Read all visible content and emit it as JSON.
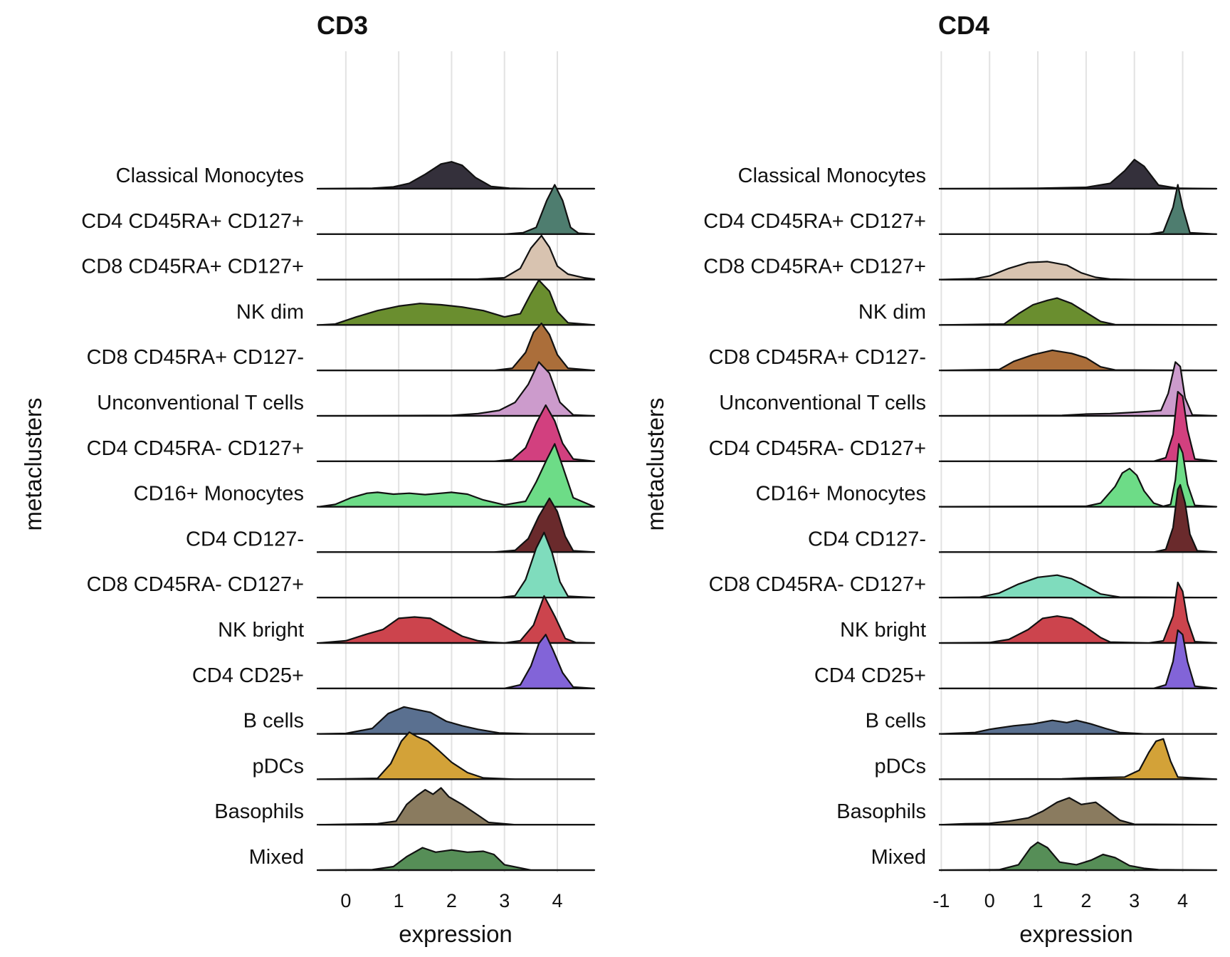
{
  "chart_data": [
    {
      "type": "ridgeline",
      "title": "CD3",
      "xlabel": "expression",
      "ylabel": "metaclusters",
      "xlim": [
        -0.55,
        4.7
      ],
      "xticks": [
        0,
        1,
        2,
        3,
        4
      ],
      "xtick_labels": [
        "0",
        "1",
        "2",
        "3",
        "4"
      ],
      "grid": "vertical major",
      "legend": "none",
      "categories": [
        "Classical Monocytes",
        "CD4 CD45RA+ CD127+",
        "CD8 CD45RA+ CD127+",
        "NK dim",
        "CD8 CD45RA+ CD127-",
        "Unconventional T cells",
        "CD4 CD45RA- CD127+",
        "CD16+ Monocytes",
        "CD4 CD127-",
        "CD8 CD45RA- CD127+",
        "NK bright",
        "CD4 CD25+",
        "B cells",
        "pDCs",
        "Basophils",
        "Mixed"
      ],
      "series": [
        {
          "color": "#34303b",
          "x": [
            -0.5,
            0.5,
            0.9,
            1.2,
            1.5,
            1.8,
            2.0,
            2.2,
            2.45,
            2.75,
            3.1,
            3.5,
            4.7
          ],
          "density": [
            0.0,
            0.01,
            0.04,
            0.12,
            0.32,
            0.55,
            0.6,
            0.52,
            0.25,
            0.05,
            0.01,
            0.0,
            0.0
          ]
        },
        {
          "color": "#4e7d6f",
          "x": [
            -0.5,
            3.0,
            3.35,
            3.6,
            3.8,
            3.95,
            4.1,
            4.25,
            4.4,
            4.7
          ],
          "density": [
            0.0,
            0.0,
            0.03,
            0.15,
            0.75,
            1.1,
            0.75,
            0.15,
            0.02,
            0.0
          ]
        },
        {
          "color": "#d8c3b0",
          "x": [
            -0.5,
            2.5,
            3.0,
            3.3,
            3.5,
            3.7,
            3.85,
            4.0,
            4.2,
            4.5,
            4.7
          ],
          "density": [
            0.0,
            0.01,
            0.04,
            0.25,
            0.7,
            0.98,
            0.72,
            0.3,
            0.12,
            0.04,
            0.01
          ]
        },
        {
          "color": "#6a8e2f",
          "x": [
            -0.5,
            -0.2,
            0.2,
            0.6,
            1.0,
            1.4,
            1.8,
            2.2,
            2.6,
            3.0,
            3.3,
            3.5,
            3.65,
            3.85,
            4.0,
            4.2,
            4.7
          ],
          "density": [
            0.0,
            0.02,
            0.18,
            0.32,
            0.42,
            0.48,
            0.45,
            0.4,
            0.32,
            0.18,
            0.25,
            0.7,
            1.0,
            0.75,
            0.3,
            0.05,
            0.0
          ]
        },
        {
          "color": "#ab6e3a",
          "x": [
            -0.5,
            2.8,
            3.15,
            3.4,
            3.55,
            3.7,
            3.85,
            4.0,
            4.2,
            4.7
          ],
          "density": [
            0.0,
            0.0,
            0.05,
            0.4,
            0.85,
            1.05,
            0.8,
            0.35,
            0.05,
            0.0
          ]
        },
        {
          "color": "#cc9bcc",
          "x": [
            -0.5,
            2.0,
            2.5,
            2.9,
            3.2,
            3.45,
            3.65,
            3.85,
            4.05,
            4.3,
            4.7
          ],
          "density": [
            0.0,
            0.01,
            0.05,
            0.12,
            0.3,
            0.7,
            1.2,
            0.95,
            0.3,
            0.02,
            0.0
          ]
        },
        {
          "color": "#d2407f",
          "x": [
            -0.5,
            2.8,
            3.15,
            3.4,
            3.6,
            3.78,
            3.95,
            4.1,
            4.3,
            4.7
          ],
          "density": [
            0.0,
            0.0,
            0.04,
            0.3,
            0.85,
            1.25,
            0.9,
            0.4,
            0.05,
            0.0
          ]
        },
        {
          "color": "#6ddc87",
          "x": [
            -0.5,
            -0.2,
            0.1,
            0.4,
            0.6,
            0.9,
            1.2,
            1.5,
            1.8,
            2.0,
            2.3,
            2.6,
            3.0,
            3.4,
            3.6,
            3.8,
            3.95,
            4.1,
            4.3,
            4.7
          ],
          "density": [
            0.0,
            0.05,
            0.2,
            0.3,
            0.32,
            0.28,
            0.3,
            0.27,
            0.3,
            0.32,
            0.28,
            0.15,
            0.04,
            0.12,
            0.55,
            1.05,
            1.4,
            0.9,
            0.2,
            0.0
          ]
        },
        {
          "color": "#6a2a2c",
          "x": [
            -0.5,
            2.8,
            3.2,
            3.45,
            3.65,
            3.85,
            4.0,
            4.15,
            4.3,
            4.7
          ],
          "density": [
            0.0,
            0.0,
            0.04,
            0.3,
            0.8,
            1.2,
            0.9,
            0.35,
            0.03,
            0.0
          ]
        },
        {
          "color": "#7fdcbd",
          "x": [
            -0.5,
            2.9,
            3.2,
            3.4,
            3.6,
            3.75,
            3.9,
            4.05,
            4.2,
            4.7
          ],
          "density": [
            0.0,
            0.0,
            0.04,
            0.4,
            1.1,
            1.45,
            1.0,
            0.35,
            0.03,
            0.0
          ]
        },
        {
          "color": "#cc444d",
          "x": [
            -0.5,
            0.0,
            0.4,
            0.7,
            1.0,
            1.3,
            1.6,
            1.9,
            2.2,
            2.5,
            2.7,
            3.0,
            3.3,
            3.55,
            3.75,
            3.95,
            4.15,
            4.35,
            4.7
          ],
          "density": [
            0.0,
            0.05,
            0.2,
            0.3,
            0.55,
            0.58,
            0.55,
            0.35,
            0.15,
            0.05,
            0.02,
            0.0,
            0.05,
            0.4,
            1.05,
            0.6,
            0.1,
            0.01,
            0.0
          ]
        },
        {
          "color": "#8264d8",
          "x": [
            -0.5,
            3.0,
            3.3,
            3.5,
            3.65,
            3.78,
            3.92,
            4.1,
            4.3,
            4.7
          ],
          "density": [
            0.0,
            0.0,
            0.08,
            0.5,
            1.0,
            1.2,
            0.85,
            0.35,
            0.03,
            0.0
          ]
        },
        {
          "color": "#5a7090",
          "x": [
            -0.5,
            0.0,
            0.5,
            0.8,
            1.1,
            1.3,
            1.6,
            1.9,
            2.2,
            2.5,
            2.9,
            3.5,
            4.7
          ],
          "density": [
            0.0,
            0.01,
            0.12,
            0.45,
            0.6,
            0.55,
            0.48,
            0.28,
            0.18,
            0.1,
            0.02,
            0.0,
            0.0
          ]
        },
        {
          "color": "#d3a238",
          "x": [
            -0.5,
            0.6,
            0.85,
            1.05,
            1.2,
            1.35,
            1.55,
            1.75,
            2.0,
            2.3,
            2.6,
            3.2,
            4.7
          ],
          "density": [
            0.0,
            0.02,
            0.35,
            0.85,
            1.05,
            0.95,
            0.85,
            0.65,
            0.38,
            0.15,
            0.03,
            0.0,
            0.0
          ]
        },
        {
          "color": "#8a7b5f",
          "x": [
            -0.5,
            0.6,
            0.95,
            1.15,
            1.35,
            1.5,
            1.65,
            1.8,
            1.95,
            2.2,
            2.45,
            2.7,
            3.2,
            4.7
          ],
          "density": [
            0.0,
            0.02,
            0.08,
            0.45,
            0.65,
            0.78,
            0.68,
            0.82,
            0.62,
            0.45,
            0.25,
            0.05,
            0.0,
            0.0
          ]
        },
        {
          "color": "#568e57",
          "x": [
            -0.5,
            0.5,
            0.9,
            1.15,
            1.45,
            1.7,
            2.0,
            2.3,
            2.6,
            2.8,
            3.0,
            3.5,
            4.7
          ],
          "density": [
            0.0,
            0.01,
            0.08,
            0.3,
            0.5,
            0.4,
            0.45,
            0.4,
            0.42,
            0.35,
            0.12,
            0.0,
            0.0
          ]
        }
      ]
    },
    {
      "type": "ridgeline",
      "title": "CD4",
      "xlabel": "expression",
      "ylabel": "metaclusters",
      "xlim": [
        -1.05,
        4.7
      ],
      "xticks": [
        -1,
        0,
        1,
        2,
        3,
        4
      ],
      "xtick_labels": [
        "-1",
        "0",
        "1",
        "2",
        "3",
        "4"
      ],
      "grid": "vertical major",
      "legend": "none",
      "categories": [
        "Classical Monocytes",
        "CD4 CD45RA+ CD127+",
        "CD8 CD45RA+ CD127+",
        "NK dim",
        "CD8 CD45RA+ CD127-",
        "Unconventional T cells",
        "CD4 CD45RA- CD127+",
        "CD16+ Monocytes",
        "CD4 CD127-",
        "CD8 CD45RA- CD127+",
        "NK bright",
        "CD4 CD25+",
        "B cells",
        "pDCs",
        "Basophils",
        "Mixed"
      ],
      "series": [
        {
          "color": "#34303b",
          "x": [
            -1.0,
            1.0,
            2.0,
            2.5,
            2.8,
            3.0,
            3.2,
            3.5,
            3.9,
            4.7
          ],
          "density": [
            0.0,
            0.01,
            0.03,
            0.12,
            0.4,
            0.65,
            0.5,
            0.08,
            0.01,
            0.0
          ]
        },
        {
          "color": "#4e7d6f",
          "x": [
            -1.0,
            3.3,
            3.6,
            3.8,
            3.9,
            4.0,
            4.15,
            4.7
          ],
          "density": [
            0.0,
            0.0,
            0.05,
            0.6,
            1.1,
            0.6,
            0.03,
            0.0
          ]
        },
        {
          "color": "#d8c3b0",
          "x": [
            -1.0,
            -0.3,
            0.0,
            0.4,
            0.8,
            1.2,
            1.6,
            1.9,
            2.2,
            2.5,
            3.0,
            4.7
          ],
          "density": [
            0.0,
            0.02,
            0.08,
            0.25,
            0.38,
            0.4,
            0.32,
            0.15,
            0.05,
            0.01,
            0.0,
            0.0
          ]
        },
        {
          "color": "#6a8e2f",
          "x": [
            -1.0,
            0.3,
            0.6,
            0.9,
            1.2,
            1.4,
            1.7,
            2.0,
            2.3,
            2.6,
            4.7
          ],
          "density": [
            0.0,
            0.02,
            0.25,
            0.45,
            0.55,
            0.6,
            0.48,
            0.28,
            0.08,
            0.01,
            0.0
          ]
        },
        {
          "color": "#ab6e3a",
          "x": [
            -1.0,
            0.2,
            0.5,
            0.9,
            1.3,
            1.7,
            2.0,
            2.3,
            2.6,
            4.7
          ],
          "density": [
            0.0,
            0.02,
            0.2,
            0.35,
            0.45,
            0.38,
            0.28,
            0.08,
            0.01,
            0.0
          ]
        },
        {
          "color": "#cc9bcc",
          "x": [
            -1.0,
            1.5,
            2.0,
            2.5,
            3.0,
            3.3,
            3.55,
            3.7,
            3.85,
            3.95,
            4.05,
            4.2,
            4.7
          ],
          "density": [
            0.0,
            0.01,
            0.04,
            0.05,
            0.08,
            0.1,
            0.12,
            0.5,
            1.2,
            1.1,
            0.4,
            0.02,
            0.0
          ]
        },
        {
          "color": "#d2407f",
          "x": [
            -1.0,
            3.4,
            3.65,
            3.8,
            3.9,
            4.0,
            4.1,
            4.25,
            4.7
          ],
          "density": [
            0.0,
            0.0,
            0.08,
            0.6,
            1.55,
            1.45,
            0.7,
            0.05,
            0.0
          ]
        },
        {
          "color": "#6ddc87",
          "x": [
            -1.0,
            2.0,
            2.3,
            2.6,
            2.75,
            2.9,
            3.05,
            3.2,
            3.4,
            3.6,
            3.75,
            3.85,
            3.92,
            4.0,
            4.1,
            4.25,
            4.7
          ],
          "density": [
            0.0,
            0.01,
            0.08,
            0.45,
            0.75,
            0.85,
            0.7,
            0.35,
            0.08,
            0.01,
            0.05,
            0.6,
            1.4,
            1.2,
            0.5,
            0.03,
            0.0
          ]
        },
        {
          "color": "#6a2a2c",
          "x": [
            -1.0,
            3.4,
            3.65,
            3.8,
            3.9,
            3.95,
            4.05,
            4.15,
            4.3,
            4.7
          ],
          "density": [
            0.0,
            0.0,
            0.06,
            0.55,
            1.4,
            1.5,
            1.1,
            0.4,
            0.03,
            0.0
          ]
        },
        {
          "color": "#7fdcbd",
          "x": [
            -1.0,
            -0.2,
            0.2,
            0.6,
            1.0,
            1.4,
            1.7,
            2.0,
            2.3,
            2.7,
            4.7
          ],
          "density": [
            0.0,
            0.01,
            0.1,
            0.3,
            0.45,
            0.5,
            0.42,
            0.25,
            0.08,
            0.01,
            0.0
          ]
        },
        {
          "color": "#cc444d",
          "x": [
            -1.0,
            0.0,
            0.4,
            0.8,
            1.1,
            1.4,
            1.7,
            2.0,
            2.3,
            2.5,
            3.3,
            3.6,
            3.8,
            3.9,
            4.0,
            4.1,
            4.25,
            4.7
          ],
          "density": [
            0.0,
            0.01,
            0.08,
            0.3,
            0.55,
            0.6,
            0.55,
            0.35,
            0.12,
            0.02,
            0.0,
            0.05,
            0.6,
            1.35,
            1.15,
            0.5,
            0.03,
            0.0
          ]
        },
        {
          "color": "#8264d8",
          "x": [
            -1.0,
            3.4,
            3.65,
            3.8,
            3.9,
            4.0,
            4.1,
            4.25,
            4.7
          ],
          "density": [
            0.0,
            0.0,
            0.08,
            0.6,
            1.3,
            1.2,
            0.6,
            0.05,
            0.0
          ]
        },
        {
          "color": "#5a7090",
          "x": [
            -1.0,
            -0.3,
            0.0,
            0.5,
            0.9,
            1.3,
            1.6,
            1.8,
            2.1,
            2.4,
            2.7,
            3.2,
            4.7
          ],
          "density": [
            0.0,
            0.03,
            0.1,
            0.18,
            0.22,
            0.3,
            0.25,
            0.3,
            0.22,
            0.12,
            0.03,
            0.0,
            0.0
          ]
        },
        {
          "color": "#d3a238",
          "x": [
            -1.0,
            1.5,
            2.0,
            2.8,
            3.1,
            3.3,
            3.45,
            3.6,
            3.75,
            3.9,
            4.7
          ],
          "density": [
            0.0,
            0.01,
            0.03,
            0.05,
            0.2,
            0.6,
            0.85,
            0.9,
            0.4,
            0.05,
            0.0
          ]
        },
        {
          "color": "#8a7b5f",
          "x": [
            -1.0,
            -0.5,
            0.0,
            0.4,
            0.8,
            1.1,
            1.4,
            1.65,
            1.9,
            2.2,
            2.45,
            2.7,
            3.0,
            4.7
          ],
          "density": [
            0.0,
            0.02,
            0.03,
            0.08,
            0.15,
            0.3,
            0.5,
            0.6,
            0.45,
            0.5,
            0.3,
            0.1,
            0.01,
            0.0
          ]
        },
        {
          "color": "#568e57",
          "x": [
            -1.0,
            0.2,
            0.6,
            0.85,
            1.0,
            1.2,
            1.45,
            1.8,
            2.1,
            2.35,
            2.6,
            2.9,
            3.2,
            3.5,
            4.7
          ],
          "density": [
            0.0,
            0.01,
            0.12,
            0.5,
            0.62,
            0.5,
            0.18,
            0.12,
            0.22,
            0.35,
            0.28,
            0.1,
            0.04,
            0.01,
            0.0
          ]
        }
      ]
    }
  ]
}
